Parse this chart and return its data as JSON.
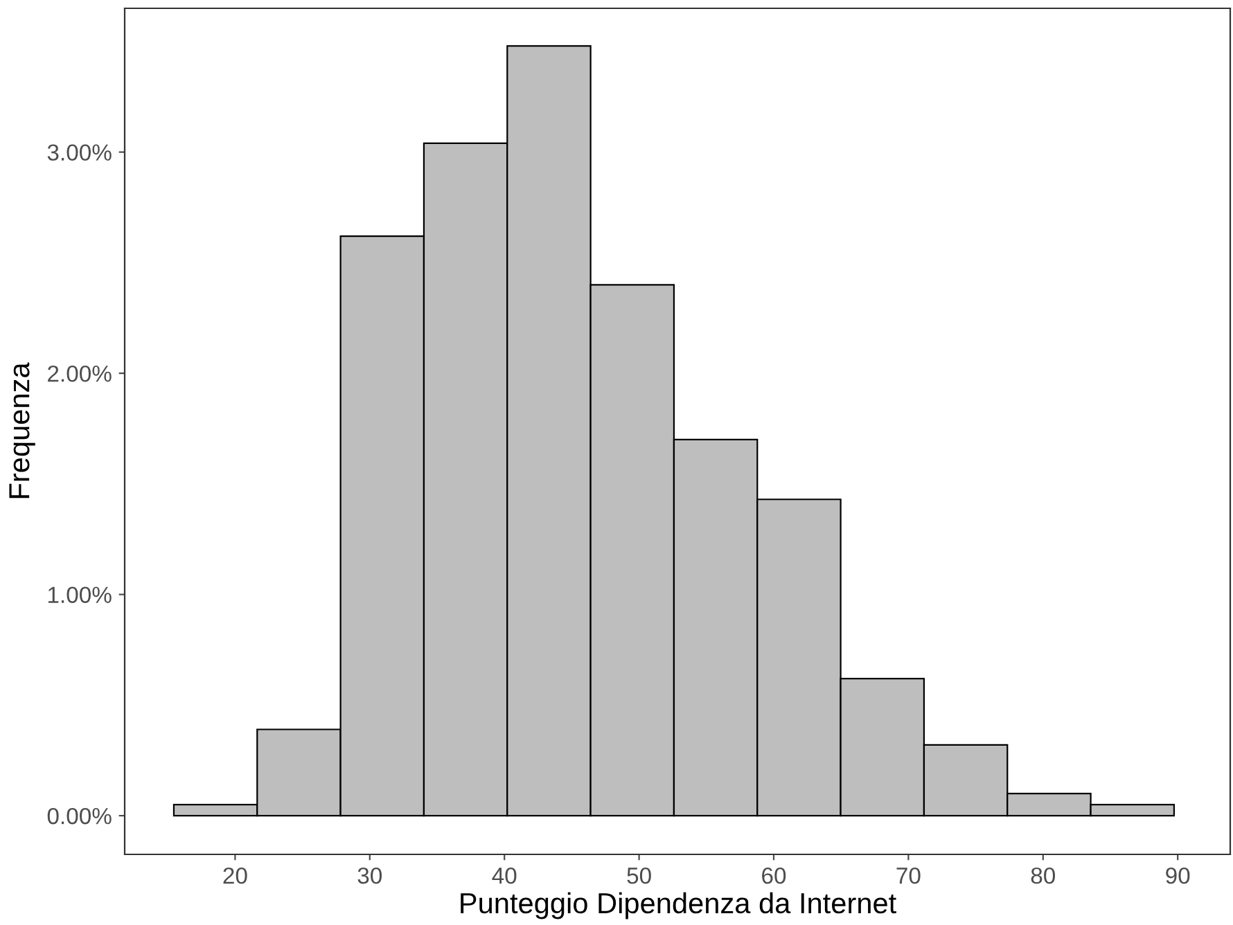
{
  "chart_data": {
    "type": "histogram",
    "xlabel": "Punteggio Dipendenza da Internet",
    "ylabel": "Frequenza",
    "bins": [
      15.45,
      21.64,
      27.83,
      34.02,
      40.21,
      46.4,
      52.59,
      58.78,
      64.97,
      71.16,
      77.35,
      83.54,
      89.73
    ],
    "values": [
      0.05,
      0.39,
      2.62,
      3.04,
      3.48,
      2.4,
      1.7,
      1.43,
      0.62,
      0.32,
      0.1,
      0.05
    ],
    "color": "#bebebe",
    "xlim": [
      11.8,
      93.9
    ],
    "ylim": [
      -0.175,
      3.65
    ],
    "xticks": [
      20,
      30,
      40,
      50,
      60,
      70,
      80,
      90
    ],
    "yticks": [
      {
        "value": 0,
        "label": "0.00%"
      },
      {
        "value": 1,
        "label": "1.00%"
      },
      {
        "value": 2,
        "label": "2.00%"
      },
      {
        "value": 3,
        "label": "3.00%"
      }
    ],
    "grid": false
  }
}
